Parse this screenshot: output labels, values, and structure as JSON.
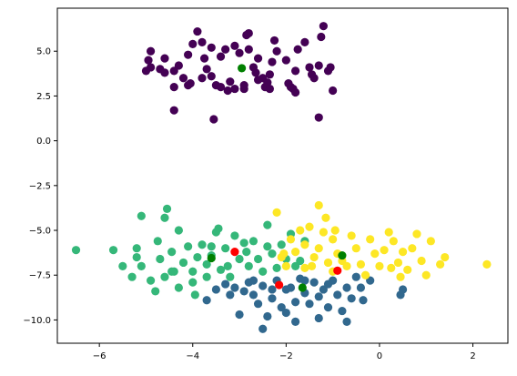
{
  "chart_data": {
    "type": "scatter",
    "title": "",
    "xlabel": "",
    "ylabel": "",
    "xlim": [
      -6.9,
      2.75
    ],
    "ylim": [
      -11.3,
      7.4
    ],
    "grid": false,
    "legend": "none",
    "x_ticks": [
      -6,
      -4,
      -2,
      0,
      2
    ],
    "x_tick_labels": [
      "−6",
      "−4",
      "−2",
      "0",
      "2"
    ],
    "y_ticks": [
      -10.0,
      -7.5,
      -5.0,
      -2.5,
      0.0,
      2.5,
      5.0
    ],
    "y_tick_labels": [
      "−10.0",
      "−7.5",
      "−5.0",
      "−2.5",
      "0.0",
      "2.5",
      "5.0"
    ],
    "series": [
      {
        "color": "#440154",
        "points": [
          [
            -4.9,
            5.0
          ],
          [
            -4.95,
            4.5
          ],
          [
            -4.9,
            4.1
          ],
          [
            -4.7,
            4.0
          ],
          [
            -4.6,
            3.8
          ],
          [
            -4.6,
            4.6
          ],
          [
            -4.3,
            4.2
          ],
          [
            -4.4,
            3.0
          ],
          [
            -4.2,
            3.5
          ],
          [
            -4.1,
            3.1
          ],
          [
            -4.0,
            5.4
          ],
          [
            -3.9,
            6.1
          ],
          [
            -3.8,
            5.5
          ],
          [
            -3.75,
            4.6
          ],
          [
            -3.7,
            4.0
          ],
          [
            -3.6,
            3.6
          ],
          [
            -3.5,
            3.1
          ],
          [
            -3.4,
            4.7
          ],
          [
            -3.3,
            5.1
          ],
          [
            -3.2,
            3.3
          ],
          [
            -3.1,
            5.3
          ],
          [
            -3.0,
            4.9
          ],
          [
            -2.85,
            5.9
          ],
          [
            -2.8,
            5.1
          ],
          [
            -2.7,
            4.1
          ],
          [
            -2.65,
            3.8
          ],
          [
            -2.5,
            3.5
          ],
          [
            -2.45,
            3.0
          ],
          [
            -2.4,
            3.25
          ],
          [
            -2.35,
            2.9
          ],
          [
            -2.3,
            4.4
          ],
          [
            -2.25,
            5.6
          ],
          [
            -2.2,
            5.0
          ],
          [
            -2.0,
            4.5
          ],
          [
            -1.95,
            3.2
          ],
          [
            -1.85,
            2.9
          ],
          [
            -1.8,
            3.9
          ],
          [
            -1.75,
            5.1
          ],
          [
            -1.6,
            5.5
          ],
          [
            -1.5,
            4.1
          ],
          [
            -1.45,
            3.7
          ],
          [
            -1.4,
            3.5
          ],
          [
            -1.3,
            4.2
          ],
          [
            -1.2,
            6.4
          ],
          [
            -1.25,
            5.8
          ],
          [
            -1.1,
            3.9
          ],
          [
            -1.05,
            4.1
          ],
          [
            -1.0,
            2.8
          ],
          [
            -1.3,
            1.3
          ],
          [
            -3.55,
            1.2
          ],
          [
            -4.4,
            1.7
          ],
          [
            -3.1,
            2.9
          ],
          [
            -2.9,
            2.9
          ],
          [
            -2.6,
            3.4
          ],
          [
            -2.8,
            6.0
          ],
          [
            -2.6,
            4.6
          ],
          [
            -2.35,
            3.7
          ],
          [
            -1.9,
            3.0
          ],
          [
            -1.8,
            2.7
          ],
          [
            -4.05,
            3.2
          ],
          [
            -3.25,
            2.8
          ],
          [
            -3.8,
            3.5
          ],
          [
            -5.0,
            3.9
          ],
          [
            -4.4,
            3.9
          ],
          [
            -4.1,
            4.8
          ],
          [
            -3.6,
            5.2
          ],
          [
            -3.4,
            3.0
          ],
          [
            -2.9,
            3.1
          ]
        ]
      },
      {
        "color": "#31688e",
        "points": [
          [
            -3.7,
            -8.9
          ],
          [
            -3.5,
            -8.3
          ],
          [
            -3.3,
            -8.0
          ],
          [
            -3.2,
            -8.6
          ],
          [
            -3.0,
            -9.7
          ],
          [
            -2.9,
            -8.4
          ],
          [
            -2.8,
            -7.9
          ],
          [
            -2.7,
            -8.6
          ],
          [
            -2.6,
            -9.1
          ],
          [
            -2.5,
            -8.1
          ],
          [
            -2.5,
            -10.5
          ],
          [
            -2.4,
            -9.8
          ],
          [
            -2.3,
            -8.8
          ],
          [
            -2.2,
            -7.8
          ],
          [
            -2.1,
            -9.3
          ],
          [
            -2.0,
            -9.6
          ],
          [
            -1.9,
            -8.2
          ],
          [
            -1.8,
            -9.0
          ],
          [
            -1.8,
            -10.1
          ],
          [
            -1.7,
            -7.7
          ],
          [
            -1.6,
            -8.5
          ],
          [
            -1.5,
            -9.1
          ],
          [
            -1.4,
            -7.9
          ],
          [
            -1.3,
            -8.7
          ],
          [
            -1.3,
            -9.9
          ],
          [
            -1.2,
            -8.3
          ],
          [
            -1.1,
            -9.3
          ],
          [
            -1.0,
            -7.8
          ],
          [
            -0.9,
            -8.6
          ],
          [
            -0.8,
            -9.5
          ],
          [
            -0.7,
            -8.2
          ],
          [
            -0.6,
            -8.8
          ],
          [
            -0.7,
            -10.1
          ],
          [
            -0.5,
            -7.6
          ],
          [
            -0.4,
            -8.2
          ],
          [
            -0.35,
            -8.9
          ],
          [
            -0.2,
            -7.8
          ],
          [
            0.5,
            -8.3
          ],
          [
            0.45,
            -8.6
          ],
          [
            -2.0,
            -8.3
          ],
          [
            -1.6,
            -7.8
          ],
          [
            -1.1,
            -8.0
          ],
          [
            -2.7,
            -7.8
          ],
          [
            -3.1,
            -8.2
          ],
          [
            -2.3,
            -8.3
          ]
        ]
      },
      {
        "color": "#35b779",
        "points": [
          [
            -6.5,
            -6.1
          ],
          [
            -5.7,
            -6.1
          ],
          [
            -5.5,
            -7.0
          ],
          [
            -5.3,
            -7.6
          ],
          [
            -5.2,
            -6.5
          ],
          [
            -5.1,
            -7.0
          ],
          [
            -5.2,
            -6.0
          ],
          [
            -5.1,
            -4.2
          ],
          [
            -4.9,
            -7.8
          ],
          [
            -4.8,
            -8.4
          ],
          [
            -4.75,
            -5.6
          ],
          [
            -4.7,
            -6.6
          ],
          [
            -4.6,
            -4.3
          ],
          [
            -4.55,
            -3.8
          ],
          [
            -4.45,
            -6.2
          ],
          [
            -4.4,
            -7.3
          ],
          [
            -4.3,
            -8.2
          ],
          [
            -4.3,
            -5.0
          ],
          [
            -4.2,
            -6.8
          ],
          [
            -4.1,
            -5.9
          ],
          [
            -4.0,
            -7.3
          ],
          [
            -4.0,
            -7.9
          ],
          [
            -3.95,
            -8.6
          ],
          [
            -3.8,
            -5.8
          ],
          [
            -3.7,
            -7.6
          ],
          [
            -3.6,
            -6.4
          ],
          [
            -3.5,
            -5.1
          ],
          [
            -3.45,
            -4.9
          ],
          [
            -3.4,
            -7.2
          ],
          [
            -3.3,
            -6.0
          ],
          [
            -3.2,
            -7.6
          ],
          [
            -3.1,
            -5.3
          ],
          [
            -3.0,
            -6.6
          ],
          [
            -2.9,
            -5.7
          ],
          [
            -2.8,
            -7.0
          ],
          [
            -2.7,
            -5.6
          ],
          [
            -2.6,
            -6.6
          ],
          [
            -2.5,
            -7.3
          ],
          [
            -2.4,
            -5.9
          ],
          [
            -2.3,
            -6.3
          ],
          [
            -2.2,
            -7.1
          ],
          [
            -2.1,
            -5.8
          ],
          [
            -2.0,
            -6.6
          ],
          [
            -1.9,
            -5.2
          ],
          [
            -1.8,
            -7.0
          ],
          [
            -1.7,
            -6.7
          ],
          [
            -1.6,
            -5.6
          ],
          [
            -2.4,
            -4.7
          ],
          [
            -3.7,
            -6.9
          ],
          [
            -4.45,
            -7.3
          ],
          [
            -4.6,
            -7.6
          ],
          [
            -3.25,
            -7.0
          ],
          [
            -3.6,
            -5.9
          ],
          [
            -2.85,
            -6.2
          ],
          [
            -3.9,
            -6.5
          ]
        ]
      },
      {
        "color": "#fde725",
        "points": [
          [
            -2.2,
            -4.0
          ],
          [
            -2.1,
            -6.5
          ],
          [
            -2.0,
            -7.0
          ],
          [
            -1.9,
            -5.5
          ],
          [
            -1.8,
            -6.2
          ],
          [
            -1.7,
            -5.0
          ],
          [
            -1.6,
            -5.8
          ],
          [
            -1.6,
            -7.1
          ],
          [
            -1.5,
            -4.8
          ],
          [
            -1.4,
            -6.5
          ],
          [
            -1.3,
            -6.0
          ],
          [
            -1.3,
            -3.6
          ],
          [
            -1.2,
            -5.1
          ],
          [
            -1.1,
            -6.8
          ],
          [
            -1.0,
            -7.3
          ],
          [
            -1.0,
            -5.5
          ],
          [
            -0.9,
            -6.3
          ],
          [
            -0.8,
            -6.7
          ],
          [
            -0.7,
            -7.0
          ],
          [
            -0.6,
            -5.3
          ],
          [
            -0.5,
            -6.0
          ],
          [
            -0.4,
            -6.9
          ],
          [
            -0.3,
            -7.5
          ],
          [
            -0.2,
            -5.5
          ],
          [
            -0.1,
            -6.3
          ],
          [
            0.0,
            -7.0
          ],
          [
            0.1,
            -6.1
          ],
          [
            0.2,
            -5.1
          ],
          [
            0.25,
            -7.1
          ],
          [
            0.3,
            -5.6
          ],
          [
            0.4,
            -6.8
          ],
          [
            0.5,
            -6.2
          ],
          [
            0.6,
            -7.2
          ],
          [
            0.7,
            -6.0
          ],
          [
            0.8,
            -5.2
          ],
          [
            0.9,
            -6.7
          ],
          [
            1.0,
            -7.5
          ],
          [
            1.1,
            -5.6
          ],
          [
            1.3,
            -6.9
          ],
          [
            1.4,
            -6.5
          ],
          [
            2.3,
            -6.9
          ],
          [
            -0.95,
            -5.0
          ],
          [
            -1.15,
            -4.3
          ],
          [
            -1.45,
            -7.0
          ],
          [
            -2.05,
            -6.3
          ],
          [
            0.45,
            -7.6
          ]
        ]
      }
    ],
    "centroids_green": {
      "color": "#008000",
      "points": [
        [
          -2.95,
          4.05
        ],
        [
          -3.6,
          -6.55
        ],
        [
          -0.8,
          -6.4
        ],
        [
          -1.65,
          -8.2
        ]
      ]
    },
    "centroids_red": {
      "color": "#ff0000",
      "points": [
        [
          -3.1,
          -6.2
        ],
        [
          -0.9,
          -7.25
        ],
        [
          -2.15,
          -8.05
        ]
      ]
    }
  }
}
